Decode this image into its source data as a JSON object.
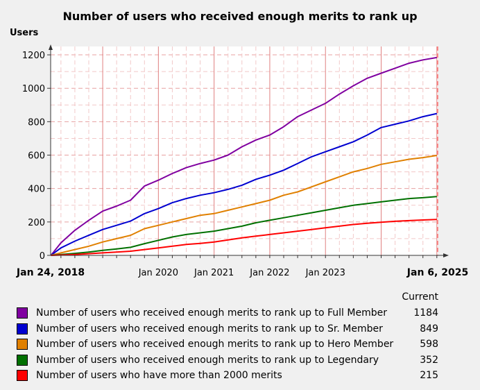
{
  "chart_data": {
    "type": "line",
    "title": "Number of users who received enough merits to rank up",
    "ylabel": "Users",
    "xlabel": "",
    "ylim": [
      0,
      1250
    ],
    "yticks": [
      0,
      200,
      400,
      600,
      800,
      1000,
      1200
    ],
    "x_range": [
      2018.065,
      2025.015
    ],
    "x_ticks": [
      {
        "label": "Jan 24, 2018",
        "value": 2018.065,
        "bold": true
      },
      {
        "label": "Jan 2020",
        "value": 2020.0,
        "bold": false
      },
      {
        "label": "Jan 2021",
        "value": 2021.0,
        "bold": false
      },
      {
        "label": "Jan 2022",
        "value": 2022.0,
        "bold": false
      },
      {
        "label": "Jan 2023",
        "value": 2023.0,
        "bold": false
      },
      {
        "label": "Jan 6, 2025",
        "value": 2025.015,
        "bold": true
      }
    ],
    "grid": true,
    "x": [
      2018.07,
      2018.25,
      2018.5,
      2018.75,
      2019.0,
      2019.25,
      2019.5,
      2019.75,
      2020.0,
      2020.25,
      2020.5,
      2020.75,
      2021.0,
      2021.25,
      2021.5,
      2021.75,
      2022.0,
      2022.25,
      2022.5,
      2022.75,
      2023.0,
      2023.25,
      2023.5,
      2023.75,
      2024.0,
      2024.25,
      2024.5,
      2024.75,
      2025.0
    ],
    "series": [
      {
        "name": "Number of users who received enough merits to rank up to Full Member",
        "color": "#8000a0",
        "current": "1184",
        "values": [
          0,
          75,
          150,
          210,
          265,
          295,
          330,
          415,
          450,
          490,
          525,
          550,
          570,
          600,
          650,
          690,
          720,
          770,
          830,
          870,
          910,
          965,
          1015,
          1060,
          1090,
          1120,
          1150,
          1170,
          1184
        ]
      },
      {
        "name": "Number of users who received enough merits to rank up to Sr. Member",
        "color": "#0000d0",
        "current": "849",
        "values": [
          0,
          45,
          85,
          120,
          155,
          180,
          205,
          250,
          280,
          315,
          340,
          360,
          375,
          395,
          420,
          455,
          480,
          510,
          550,
          590,
          620,
          650,
          680,
          720,
          765,
          785,
          805,
          830,
          849
        ]
      },
      {
        "name": "Number of users who received enough merits to rank up to Hero Member",
        "color": "#e08000",
        "current": "598",
        "values": [
          0,
          15,
          35,
          55,
          80,
          100,
          120,
          160,
          180,
          200,
          220,
          240,
          250,
          270,
          290,
          310,
          330,
          360,
          380,
          410,
          440,
          470,
          500,
          520,
          545,
          560,
          575,
          585,
          598
        ]
      },
      {
        "name": "Number of users who received enough merits to rank up to Legendary",
        "color": "#007000",
        "current": "352",
        "values": [
          0,
          5,
          12,
          20,
          30,
          38,
          48,
          70,
          90,
          110,
          125,
          135,
          145,
          160,
          175,
          195,
          210,
          225,
          240,
          255,
          270,
          285,
          300,
          310,
          320,
          330,
          340,
          345,
          352
        ]
      },
      {
        "name": "Number of users who have more than 2000 merits",
        "color": "#ff0000",
        "current": "215",
        "values": [
          0,
          2,
          5,
          10,
          15,
          20,
          25,
          35,
          45,
          55,
          65,
          72,
          80,
          92,
          105,
          115,
          125,
          135,
          145,
          155,
          165,
          175,
          185,
          192,
          198,
          204,
          208,
          212,
          215
        ]
      }
    ]
  },
  "legend": {
    "header": "Current"
  }
}
